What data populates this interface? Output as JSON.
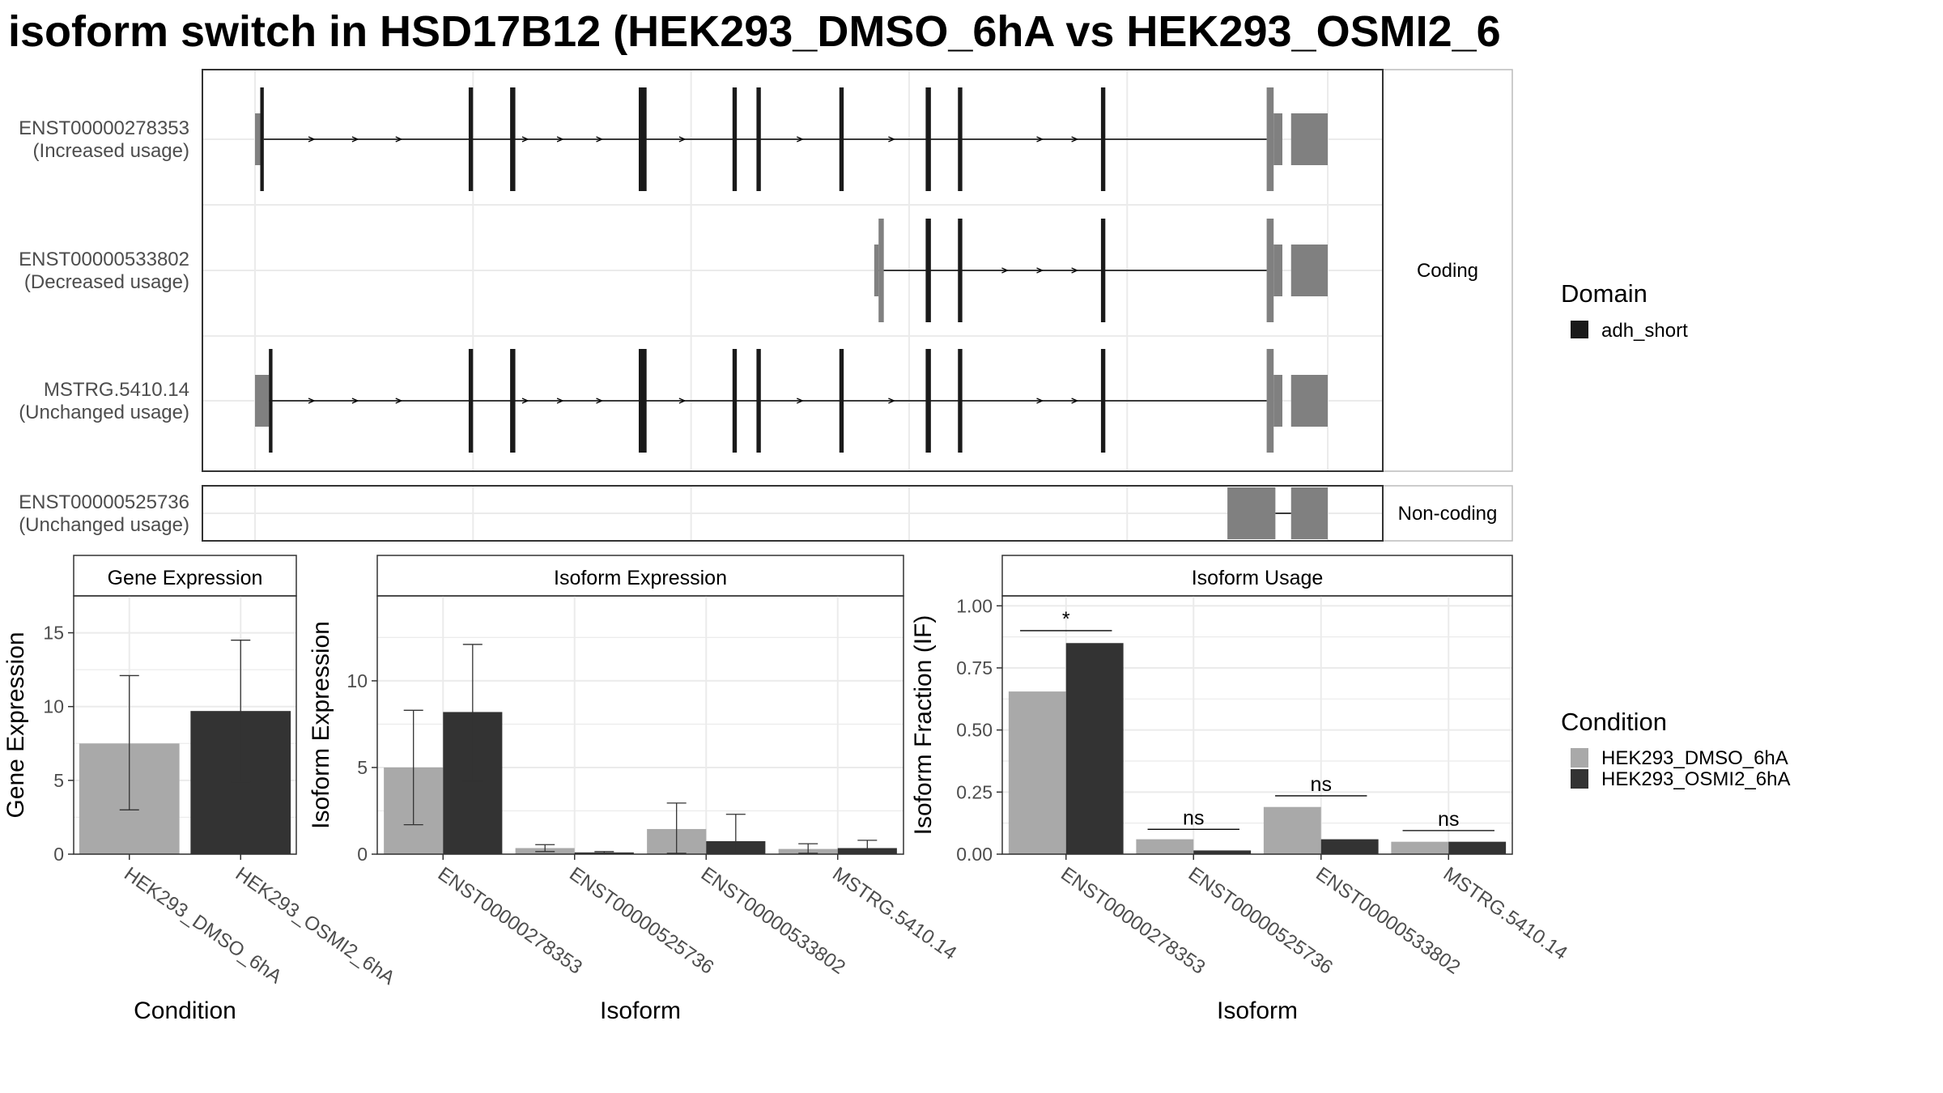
{
  "title": "isoform switch in HSD17B12 (HEK293_DMSO_6hA vs HEK293_OSMI2_6",
  "colors": {
    "dmso": "#a9a9a9",
    "osmi": "#333333",
    "domain": "#1a1a1a",
    "exon": "#808080",
    "grid": "#ebebeb",
    "panel_border": "#333333",
    "strip_border": "#bbbbbb"
  },
  "gene_model": {
    "coding_strip": "Coding",
    "noncoding_strip": "Non-coding",
    "transcripts": [
      {
        "id": "ENST00000278353",
        "usage": "(Increased usage)",
        "group": "coding",
        "intron": [
          20,
          2320
        ],
        "exons": [
          [
            0,
            12,
            "narrow"
          ],
          [
            12,
            20,
            "wide"
          ],
          [
            2320,
            2336,
            "wide"
          ],
          [
            2336,
            2356,
            "narrow"
          ],
          [
            2376,
            2460,
            "narrow"
          ]
        ],
        "utr3": [
          2376,
          2460
        ],
        "domains": [
          [
            12,
            20
          ],
          [
            490,
            500
          ],
          [
            585,
            597
          ],
          [
            880,
            898
          ],
          [
            1095,
            1105
          ],
          [
            1150,
            1160
          ],
          [
            1340,
            1350
          ],
          [
            1538,
            1550
          ],
          [
            1612,
            1622
          ],
          [
            1940,
            1950
          ]
        ],
        "arrows": [
          130,
          230,
          330,
          620,
          700,
          790,
          980,
          1250,
          1460,
          1800,
          1880
        ]
      },
      {
        "id": "ENST00000533802",
        "usage": "(Decreased usage)",
        "group": "coding",
        "intron": [
          1430,
          2320
        ],
        "exons": [
          [
            1420,
            1430,
            "narrow"
          ],
          [
            1430,
            1442,
            "wide"
          ],
          [
            2320,
            2336,
            "wide"
          ],
          [
            2336,
            2356,
            "narrow"
          ],
          [
            2376,
            2460,
            "narrow"
          ]
        ],
        "domains": [
          [
            1538,
            1550
          ],
          [
            1612,
            1622
          ],
          [
            1940,
            1950
          ]
        ],
        "arrows": [
          1720,
          1800,
          1880
        ]
      },
      {
        "id": "MSTRG.5410.14",
        "usage": "(Unchanged usage)",
        "group": "coding",
        "intron": [
          20,
          2320
        ],
        "exons": [
          [
            0,
            32,
            "narrow"
          ],
          [
            32,
            40,
            "wide"
          ],
          [
            2320,
            2336,
            "wide"
          ],
          [
            2336,
            2356,
            "narrow"
          ],
          [
            2376,
            2460,
            "narrow"
          ]
        ],
        "domains": [
          [
            32,
            40
          ],
          [
            490,
            500
          ],
          [
            585,
            597
          ],
          [
            880,
            898
          ],
          [
            1095,
            1105
          ],
          [
            1150,
            1160
          ],
          [
            1340,
            1350
          ],
          [
            1538,
            1550
          ],
          [
            1612,
            1622
          ],
          [
            1940,
            1950
          ]
        ],
        "arrows": [
          130,
          230,
          330,
          620,
          700,
          790,
          980,
          1250,
          1460,
          1800,
          1880
        ]
      },
      {
        "id": "ENST00000525736",
        "usage": "(Unchanged usage)",
        "group": "noncoding",
        "intron": [
          2340,
          2376
        ],
        "exons": [
          [
            2230,
            2340,
            "wide"
          ],
          [
            2376,
            2460,
            "wide"
          ]
        ],
        "domains": [],
        "arrows": []
      }
    ]
  },
  "legend_domain": {
    "title": "Domain",
    "items": [
      {
        "label": "adh_short",
        "color": "#1a1a1a"
      }
    ]
  },
  "legend_condition": {
    "title": "Condition",
    "items": [
      {
        "label": "HEK293_DMSO_6hA",
        "color": "#a9a9a9"
      },
      {
        "label": "HEK293_OSMI2_6hA",
        "color": "#333333"
      }
    ]
  },
  "chart_data": [
    {
      "type": "bar",
      "title": "Gene Expression",
      "xlabel": "Condition",
      "ylabel": "Gene Expression",
      "ylim": [
        0,
        17.5
      ],
      "yticks": [
        0,
        5,
        10,
        15
      ],
      "categories": [
        "HEK293_DMSO_6hA",
        "HEK293_OSMI2_6hA"
      ],
      "values": [
        7.5,
        9.7
      ],
      "errors": [
        [
          3.0,
          12.1
        ],
        [
          4.9,
          14.5
        ]
      ]
    },
    {
      "type": "bar",
      "title": "Isoform Expression",
      "xlabel": "Isoform",
      "ylabel": "Isoform Expression",
      "ylim": [
        0,
        14.9
      ],
      "yticks": [
        0,
        5,
        10
      ],
      "categories": [
        "ENST00000278353",
        "ENST00000525736",
        "ENST00000533802",
        "MSTRG.5410.14"
      ],
      "series": [
        {
          "name": "HEK293_DMSO_6hA",
          "values": [
            5.0,
            0.35,
            1.45,
            0.3
          ],
          "errors": [
            [
              1.7,
              8.3
            ],
            [
              0.15,
              0.55
            ],
            [
              0.05,
              2.95
            ],
            [
              0.05,
              0.6
            ]
          ]
        },
        {
          "name": "HEK293_OSMI2_6hA",
          "values": [
            8.2,
            0.1,
            0.75,
            0.35
          ],
          "errors": [
            [
              4.2,
              12.1
            ],
            [
              0.05,
              0.15
            ],
            [
              0.05,
              2.3
            ],
            [
              0.05,
              0.8
            ]
          ]
        }
      ]
    },
    {
      "type": "bar",
      "title": "Isoform Usage",
      "xlabel": "Isoform",
      "ylabel": "Isoform Fraction (IF)",
      "ylim": [
        0,
        1.04
      ],
      "yticks": [
        0,
        0.25,
        0.5,
        0.75,
        1.0
      ],
      "ytick_labels": [
        "0.00",
        "0.25",
        "0.50",
        "0.75",
        "1.00"
      ],
      "categories": [
        "ENST00000278353",
        "ENST00000525736",
        "ENST00000533802",
        "MSTRG.5410.14"
      ],
      "series": [
        {
          "name": "HEK293_DMSO_6hA",
          "values": [
            0.655,
            0.06,
            0.19,
            0.05
          ]
        },
        {
          "name": "HEK293_OSMI2_6hA",
          "values": [
            0.85,
            0.015,
            0.06,
            0.05
          ]
        }
      ],
      "significance": [
        {
          "label": "*",
          "y": 0.9
        },
        {
          "label": "ns",
          "y": 0.1
        },
        {
          "label": "ns",
          "y": 0.235
        },
        {
          "label": "ns",
          "y": 0.095
        }
      ]
    }
  ]
}
